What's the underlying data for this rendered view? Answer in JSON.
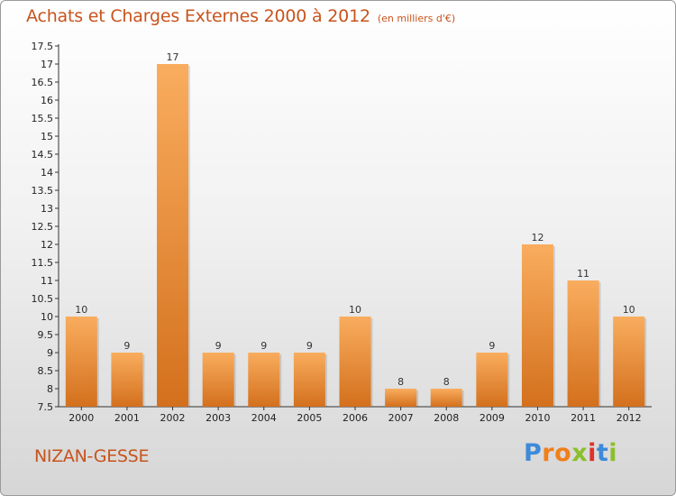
{
  "title": "Achats et Charges Externes 2000 à 2012",
  "subtitle": "(en milliers d'€)",
  "commune": "NIZAN-GESSE",
  "logo_text": "Proxiti",
  "colors": {
    "bar_light": "#f7a95a",
    "bar_dark": "#d6731f",
    "title": "#c8531c"
  },
  "chart_data": {
    "type": "bar",
    "title": "Achats et Charges Externes 2000 à 2012",
    "subtitle": "(en milliers d'€)",
    "categories": [
      "2000",
      "2001",
      "2002",
      "2003",
      "2004",
      "2005",
      "2006",
      "2007",
      "2008",
      "2009",
      "2010",
      "2011",
      "2012"
    ],
    "values": [
      10,
      9,
      17,
      9,
      9,
      9,
      10,
      8,
      8,
      9,
      12,
      11,
      10
    ],
    "ylim": [
      7.5,
      17.5
    ],
    "yticks": [
      "7.5",
      "8",
      "8.5",
      "9",
      "9.5",
      "10",
      "10.5",
      "11",
      "11.5",
      "12",
      "12.5",
      "13",
      "13.5",
      "14",
      "14.5",
      "15",
      "15.5",
      "16",
      "16.5",
      "17",
      "17.5"
    ],
    "grid": false,
    "legend": "none"
  }
}
